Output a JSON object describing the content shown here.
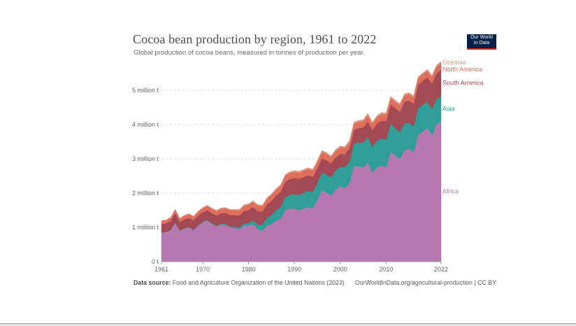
{
  "header": {
    "title": "Cocoa bean production by region, 1961 to 2022",
    "subtitle": "Global production of cocoa beans, measured in tonnes of production per year.",
    "logo_line1": "Our World",
    "logo_line2": "in Data"
  },
  "footer": {
    "source_label": "Data source:",
    "source_text": "Food and Agriculture Organization of the United Nations (2023)",
    "attribution": "OurWorldInData.org/agricultural-production | CC BY"
  },
  "colors": {
    "Africa": "#b578b0",
    "Asia": "#2e9e97",
    "South America": "#a34a55",
    "North America": "#e06e5c",
    "Oceania": "#d99a82",
    "grid": "#dddddd",
    "axis": "#666666"
  },
  "chart_data": {
    "type": "area",
    "stacked": true,
    "title": "Cocoa bean production by region, 1961 to 2022",
    "subtitle": "Global production of cocoa beans, measured in tonnes of production per year.",
    "xlabel": "",
    "ylabel": "",
    "ylim": [
      0,
      5800000
    ],
    "xlim": [
      1961,
      2022
    ],
    "grid": true,
    "legend": "right-inline-labels",
    "x_ticks": [
      "1961",
      "1970",
      "1980",
      "1990",
      "2000",
      "2010",
      "2022"
    ],
    "y_ticks": [
      {
        "value": 0,
        "label": "0 t"
      },
      {
        "value": 1000000,
        "label": "1 million t"
      },
      {
        "value": 2000000,
        "label": "2 million t"
      },
      {
        "value": 3000000,
        "label": "3 million t"
      },
      {
        "value": 4000000,
        "label": "4 million t"
      },
      {
        "value": 5000000,
        "label": "5 million t"
      }
    ],
    "x": [
      1961,
      1962,
      1963,
      1964,
      1965,
      1966,
      1967,
      1968,
      1969,
      1970,
      1971,
      1972,
      1973,
      1974,
      1975,
      1976,
      1977,
      1978,
      1979,
      1980,
      1981,
      1982,
      1983,
      1984,
      1985,
      1986,
      1987,
      1988,
      1989,
      1990,
      1991,
      1992,
      1993,
      1994,
      1995,
      1996,
      1997,
      1998,
      1999,
      2000,
      2001,
      2002,
      2003,
      2004,
      2005,
      2006,
      2007,
      2008,
      2009,
      2010,
      2011,
      2012,
      2013,
      2014,
      2015,
      2016,
      2017,
      2018,
      2019,
      2020,
      2021,
      2022
    ],
    "series": [
      {
        "name": "Africa",
        "values": [
          840000,
          860000,
          920000,
          1130000,
          900000,
          970000,
          1000000,
          920000,
          1050000,
          1150000,
          1200000,
          1100000,
          1030000,
          1080000,
          1070000,
          1000000,
          980000,
          950000,
          1050000,
          1050000,
          1100000,
          950000,
          900000,
          1050000,
          1100000,
          1200000,
          1250000,
          1500000,
          1550000,
          1550000,
          1500000,
          1550000,
          1600000,
          1560000,
          1800000,
          2080000,
          2020000,
          1930000,
          2100000,
          2200000,
          2150000,
          2300000,
          2800000,
          2780000,
          2750000,
          2900000,
          2600000,
          2750000,
          2800000,
          2750000,
          3200000,
          3100000,
          3000000,
          3250000,
          3300000,
          3200000,
          3700000,
          3800000,
          3900000,
          3700000,
          4000000,
          4100000
        ]
      },
      {
        "name": "Asia",
        "values": [
          10000,
          10000,
          10000,
          10000,
          10000,
          10000,
          10000,
          15000,
          15000,
          15000,
          20000,
          20000,
          20000,
          25000,
          30000,
          30000,
          40000,
          50000,
          60000,
          80000,
          100000,
          130000,
          180000,
          220000,
          260000,
          300000,
          350000,
          380000,
          400000,
          420000,
          450000,
          460000,
          470000,
          480000,
          500000,
          520000,
          530000,
          540000,
          560000,
          570000,
          600000,
          620000,
          650000,
          700000,
          720000,
          740000,
          760000,
          780000,
          800000,
          810000,
          830000,
          800000,
          780000,
          790000,
          760000,
          750000,
          780000,
          780000,
          760000,
          760000,
          740000,
          730000
        ]
      },
      {
        "name": "South America",
        "values": [
          250000,
          250000,
          260000,
          280000,
          250000,
          260000,
          270000,
          270000,
          280000,
          280000,
          290000,
          300000,
          300000,
          310000,
          320000,
          330000,
          340000,
          350000,
          370000,
          380000,
          390000,
          400000,
          380000,
          400000,
          420000,
          430000,
          440000,
          450000,
          460000,
          470000,
          470000,
          460000,
          450000,
          440000,
          430000,
          420000,
          410000,
          400000,
          390000,
          380000,
          380000,
          390000,
          400000,
          420000,
          440000,
          460000,
          480000,
          500000,
          520000,
          540000,
          560000,
          580000,
          600000,
          620000,
          640000,
          660000,
          680000,
          700000,
          720000,
          740000,
          760000,
          780000
        ]
      },
      {
        "name": "North America",
        "values": [
          90000,
          90000,
          95000,
          100000,
          100000,
          105000,
          110000,
          110000,
          115000,
          120000,
          120000,
          125000,
          130000,
          130000,
          135000,
          140000,
          140000,
          145000,
          150000,
          150000,
          155000,
          160000,
          160000,
          160000,
          165000,
          170000,
          170000,
          175000,
          175000,
          180000,
          180000,
          180000,
          180000,
          180000,
          180000,
          180000,
          180000,
          180000,
          180000,
          180000,
          180000,
          180000,
          180000,
          180000,
          185000,
          185000,
          185000,
          190000,
          190000,
          190000,
          190000,
          190000,
          190000,
          190000,
          190000,
          190000,
          190000,
          190000,
          190000,
          190000,
          190000,
          190000
        ]
      },
      {
        "name": "Oceania",
        "values": [
          10000,
          10000,
          10000,
          10000,
          10000,
          10000,
          10000,
          15000,
          15000,
          15000,
          20000,
          20000,
          20000,
          20000,
          25000,
          25000,
          25000,
          30000,
          30000,
          30000,
          30000,
          30000,
          30000,
          35000,
          35000,
          35000,
          40000,
          40000,
          40000,
          40000,
          40000,
          40000,
          40000,
          40000,
          45000,
          45000,
          45000,
          45000,
          45000,
          45000,
          45000,
          45000,
          45000,
          45000,
          45000,
          45000,
          45000,
          45000,
          45000,
          45000,
          45000,
          45000,
          45000,
          45000,
          45000,
          45000,
          45000,
          45000,
          45000,
          45000,
          45000,
          45000
        ]
      }
    ]
  }
}
